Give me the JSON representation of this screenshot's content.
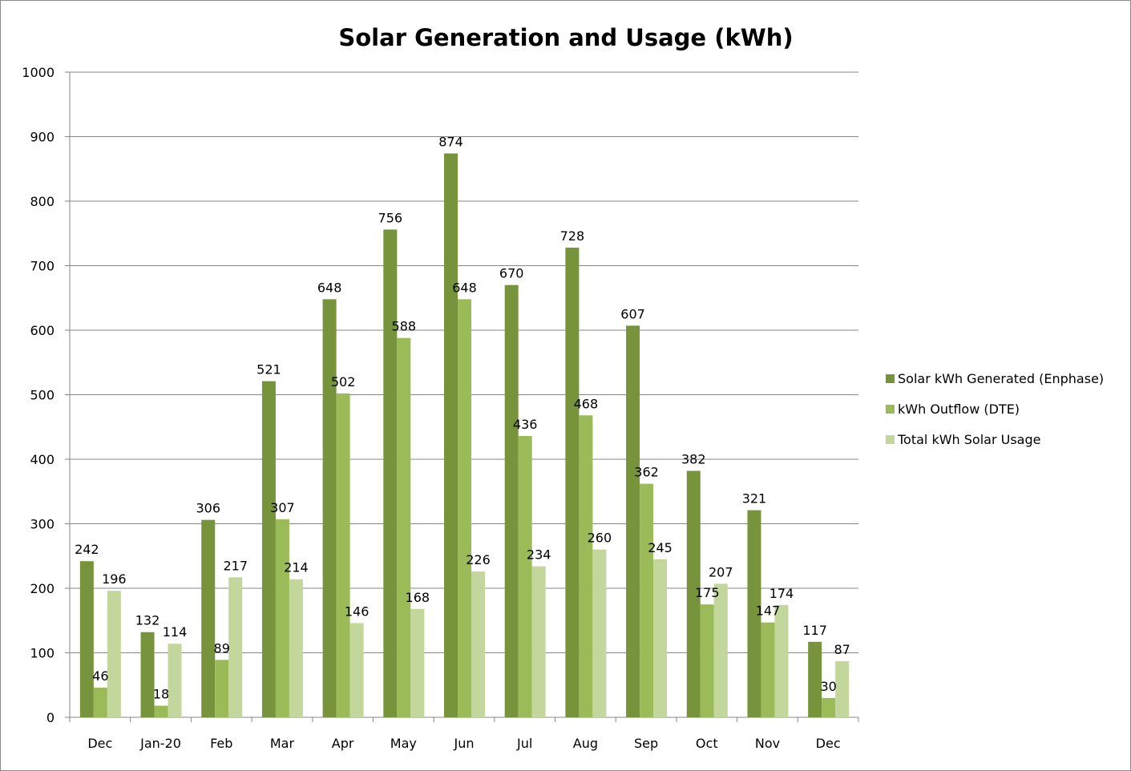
{
  "chart_data": {
    "type": "bar",
    "title": "Solar Generation and Usage (kWh)",
    "xlabel": "",
    "ylabel": "",
    "ylim": [
      0,
      1000
    ],
    "yticks": [
      0,
      100,
      200,
      300,
      400,
      500,
      600,
      700,
      800,
      900,
      1000
    ],
    "grid": "horizontal",
    "legend_position": "right",
    "categories": [
      "Dec",
      "Jan-20",
      "Feb",
      "Mar",
      "Apr",
      "May",
      "Jun",
      "Jul",
      "Aug",
      "Sep",
      "Oct",
      "Nov",
      "Dec"
    ],
    "series": [
      {
        "name": "Solar kWh Generated (Enphase)",
        "color": "#77933c",
        "values": [
          242,
          132,
          306,
          521,
          648,
          756,
          874,
          670,
          728,
          607,
          382,
          321,
          117
        ]
      },
      {
        "name": "kWh Outflow (DTE)",
        "color": "#9bbb59",
        "values": [
          46,
          18,
          89,
          307,
          502,
          588,
          648,
          436,
          468,
          362,
          175,
          147,
          30
        ]
      },
      {
        "name": "Total kWh Solar Usage",
        "color": "#c3d69b",
        "values": [
          196,
          114,
          217,
          214,
          146,
          168,
          226,
          234,
          260,
          245,
          207,
          174,
          87
        ]
      }
    ],
    "data_labels": true
  }
}
